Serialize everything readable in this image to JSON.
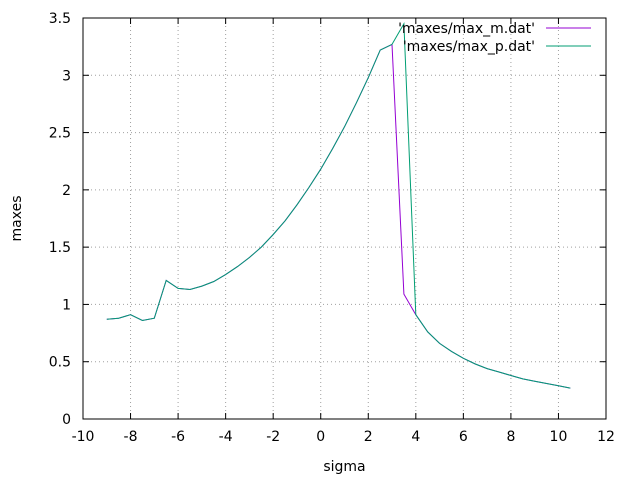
{
  "chart_data": {
    "type": "line",
    "title": "",
    "xlabel": "sigma",
    "ylabel": "maxes",
    "xlim": [
      -10,
      12
    ],
    "ylim": [
      0,
      3.5
    ],
    "xticks": [
      -10,
      -8,
      -6,
      -4,
      -2,
      0,
      2,
      4,
      6,
      8,
      10,
      12
    ],
    "yticks": [
      0,
      0.5,
      1,
      1.5,
      2,
      2.5,
      3,
      3.5
    ],
    "xtick_labels": [
      "-10",
      "-8",
      "-6",
      "-4",
      "-2",
      "0",
      "2",
      "4",
      "6",
      "8",
      "10",
      "12"
    ],
    "ytick_labels": [
      "0",
      "0.5",
      "1",
      "1.5",
      "2",
      "2.5",
      "3",
      "3.5"
    ],
    "grid": true,
    "legend_position": "top-right",
    "series": [
      {
        "name": "'maxes/max_m.dat'",
        "color": "#9400d3",
        "points": [
          [
            -9,
            0.87
          ],
          [
            -8.5,
            0.88
          ],
          [
            -8,
            0.91
          ],
          [
            -7.5,
            0.86
          ],
          [
            -7,
            0.88
          ],
          [
            -6.5,
            1.21
          ],
          [
            -6,
            1.14
          ],
          [
            -5.5,
            1.13
          ],
          [
            -5,
            1.16
          ],
          [
            -4.5,
            1.2
          ],
          [
            -4,
            1.26
          ],
          [
            -3.5,
            1.33
          ],
          [
            -3,
            1.41
          ],
          [
            -2.5,
            1.5
          ],
          [
            -2,
            1.61
          ],
          [
            -1.5,
            1.73
          ],
          [
            -1,
            1.87
          ],
          [
            -0.5,
            2.02
          ],
          [
            0,
            2.18
          ],
          [
            0.5,
            2.36
          ],
          [
            1,
            2.55
          ],
          [
            1.5,
            2.76
          ],
          [
            2,
            2.98
          ],
          [
            2.5,
            3.22
          ],
          [
            3,
            3.27
          ],
          [
            3.5,
            1.09
          ],
          [
            4,
            0.91
          ],
          [
            4.5,
            0.76
          ],
          [
            5,
            0.66
          ],
          [
            5.5,
            0.59
          ],
          [
            6,
            0.53
          ],
          [
            6.5,
            0.48
          ],
          [
            7,
            0.44
          ],
          [
            7.5,
            0.41
          ],
          [
            8,
            0.38
          ],
          [
            8.5,
            0.35
          ],
          [
            9,
            0.33
          ],
          [
            9.5,
            0.31
          ],
          [
            10,
            0.29
          ],
          [
            10.5,
            0.27
          ]
        ]
      },
      {
        "name": "'maxes/max_p.dat'",
        "color": "#009e73",
        "points": [
          [
            -9,
            0.87
          ],
          [
            -8.5,
            0.88
          ],
          [
            -8,
            0.91
          ],
          [
            -7.5,
            0.86
          ],
          [
            -7,
            0.88
          ],
          [
            -6.5,
            1.21
          ],
          [
            -6,
            1.14
          ],
          [
            -5.5,
            1.13
          ],
          [
            -5,
            1.16
          ],
          [
            -4.5,
            1.2
          ],
          [
            -4,
            1.26
          ],
          [
            -3.5,
            1.33
          ],
          [
            -3,
            1.41
          ],
          [
            -2.5,
            1.5
          ],
          [
            -2,
            1.61
          ],
          [
            -1.5,
            1.73
          ],
          [
            -1,
            1.87
          ],
          [
            -0.5,
            2.02
          ],
          [
            0,
            2.18
          ],
          [
            0.5,
            2.36
          ],
          [
            1,
            2.55
          ],
          [
            1.5,
            2.76
          ],
          [
            2,
            2.98
          ],
          [
            2.5,
            3.22
          ],
          [
            3,
            3.27
          ],
          [
            3.5,
            3.45
          ],
          [
            4,
            0.91
          ],
          [
            4.5,
            0.76
          ],
          [
            5,
            0.66
          ],
          [
            5.5,
            0.59
          ],
          [
            6,
            0.53
          ],
          [
            6.5,
            0.48
          ],
          [
            7,
            0.44
          ],
          [
            7.5,
            0.41
          ],
          [
            8,
            0.38
          ],
          [
            8.5,
            0.35
          ],
          [
            9,
            0.33
          ],
          [
            9.5,
            0.31
          ],
          [
            10,
            0.29
          ],
          [
            10.5,
            0.27
          ]
        ]
      }
    ]
  }
}
